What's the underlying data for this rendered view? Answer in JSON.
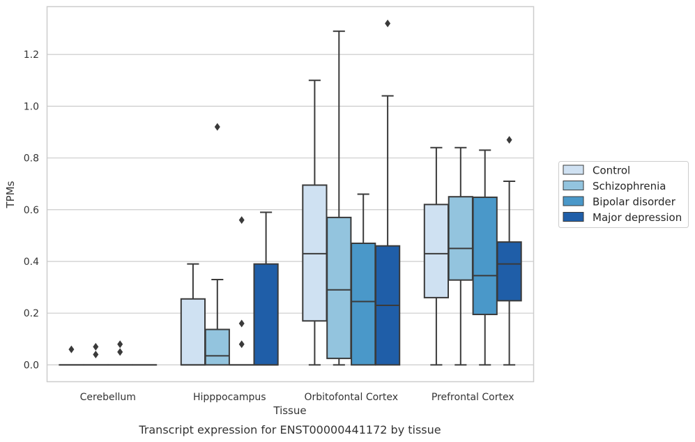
{
  "chart_data": {
    "type": "box",
    "title": "",
    "caption": "Transcript expression for ENST00000441172 by tissue",
    "xlabel": "Tissue",
    "ylabel": "TPMs",
    "ylim": [
      -0.065,
      1.385
    ],
    "yticks": [
      "0.0",
      "0.2",
      "0.4",
      "0.6",
      "0.8",
      "1.0",
      "1.2"
    ],
    "categories": [
      "Cerebellum",
      "Hipppocampus",
      "Orbitofontal Cortex",
      "Prefrontal Cortex"
    ],
    "grid": "horizontal",
    "legend_position": "right",
    "series": [
      {
        "name": "Control",
        "color": "#cfe1f2",
        "boxes": [
          {
            "whislo": 0.0,
            "q1": 0.0,
            "med": 0.0,
            "q3": 0.0,
            "whishi": 0.0,
            "fliers": [
              0.06
            ]
          },
          {
            "whislo": 0.0,
            "q1": 0.0,
            "med": 0.0,
            "q3": 0.255,
            "whishi": 0.39,
            "fliers": []
          },
          {
            "whislo": 0.0,
            "q1": 0.17,
            "med": 0.43,
            "q3": 0.695,
            "whishi": 1.1,
            "fliers": []
          },
          {
            "whislo": 0.0,
            "q1": 0.26,
            "med": 0.43,
            "q3": 0.62,
            "whishi": 0.84,
            "fliers": []
          }
        ]
      },
      {
        "name": "Schizophrenia",
        "color": "#93c4de",
        "boxes": [
          {
            "whislo": 0.0,
            "q1": 0.0,
            "med": 0.0,
            "q3": 0.0,
            "whishi": 0.0,
            "fliers": [
              0.07,
              0.04
            ]
          },
          {
            "whislo": 0.0,
            "q1": 0.0,
            "med": 0.035,
            "q3": 0.137,
            "whishi": 0.33,
            "fliers": [
              0.92
            ]
          },
          {
            "whislo": 0.0,
            "q1": 0.025,
            "med": 0.29,
            "q3": 0.57,
            "whishi": 1.29,
            "fliers": []
          },
          {
            "whislo": 0.0,
            "q1": 0.328,
            "med": 0.45,
            "q3": 0.65,
            "whishi": 0.84,
            "fliers": []
          }
        ]
      },
      {
        "name": "Bipolar disorder",
        "color": "#4a98c9",
        "boxes": [
          {
            "whislo": 0.0,
            "q1": 0.0,
            "med": 0.0,
            "q3": 0.0,
            "whishi": 0.0,
            "fliers": [
              0.08,
              0.05
            ]
          },
          {
            "whislo": 0.0,
            "q1": 0.0,
            "med": 0.0,
            "q3": 0.0,
            "whishi": 0.0,
            "fliers": [
              0.56,
              0.16,
              0.08
            ]
          },
          {
            "whislo": 0.0,
            "q1": 0.0,
            "med": 0.245,
            "q3": 0.47,
            "whishi": 0.66,
            "fliers": []
          },
          {
            "whislo": 0.0,
            "q1": 0.195,
            "med": 0.345,
            "q3": 0.648,
            "whishi": 0.83,
            "fliers": []
          }
        ]
      },
      {
        "name": "Major depression",
        "color": "#1f5ea8",
        "boxes": [
          {
            "whislo": 0.0,
            "q1": 0.0,
            "med": 0.0,
            "q3": 0.0,
            "whishi": 0.0,
            "fliers": []
          },
          {
            "whislo": 0.0,
            "q1": 0.0,
            "med": 0.0,
            "q3": 0.39,
            "whishi": 0.59,
            "fliers": []
          },
          {
            "whislo": 0.0,
            "q1": 0.0,
            "med": 0.23,
            "q3": 0.46,
            "whishi": 1.04,
            "fliers": [
              1.32
            ]
          },
          {
            "whislo": 0.0,
            "q1": 0.248,
            "med": 0.39,
            "q3": 0.475,
            "whishi": 0.71,
            "fliers": [
              0.87
            ]
          }
        ]
      }
    ]
  }
}
